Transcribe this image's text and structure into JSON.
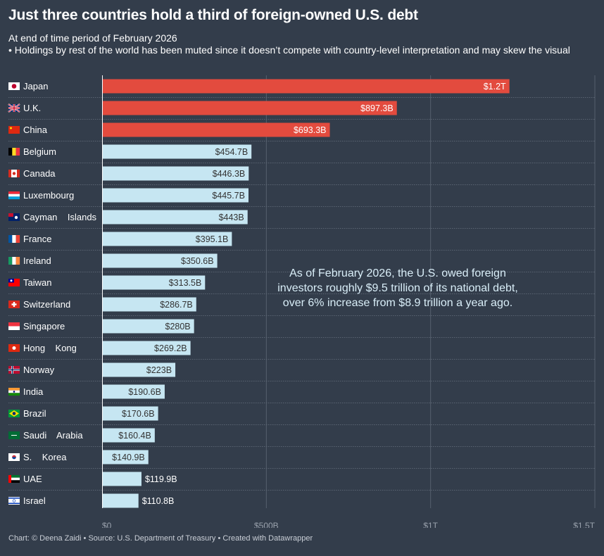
{
  "title": "Just three countries hold a third of foreign-owned U.S. debt",
  "subtitle_line1": "At end of time period of February 2026",
  "subtitle_line2": "• Holdings by rest of the world has been muted since it doesn’t compete with country-level interpretation and may skew the visual",
  "annotation": "As of February 2026, the U.S. owed foreign investors roughly $9.5 trillion of its national debt, over 6% increase from $8.9 trillion a year ago.",
  "footer": "Chart: © Deena Zaidi  • Source: U.S. Department of Treasury • Created with Datawrapper",
  "colors": {
    "background": "#333d4b",
    "highlight": "#e34b3e",
    "default": "#c6e6f2"
  },
  "chart_data": {
    "type": "bar",
    "orientation": "horizontal",
    "xlim": [
      0,
      1500
    ],
    "unit": "billion USD",
    "grid": true,
    "ticks": [
      {
        "value": 0,
        "label": "$0"
      },
      {
        "value": 500,
        "label": "$500B"
      },
      {
        "value": 1000,
        "label": "$1T"
      },
      {
        "value": 1500,
        "label": "$1.5T"
      }
    ],
    "categories": [
      "Japan",
      "U.K.",
      "China",
      "Belgium",
      "Canada",
      "Luxembourg",
      "Cayman    Islands",
      "France",
      "Ireland",
      "Taiwan",
      "Switzerland",
      "Singapore",
      "Hong    Kong",
      "Norway",
      "India",
      "Brazil",
      "Saudi    Arabia",
      "S.    Korea",
      "UAE",
      "Israel"
    ],
    "flags": [
      "jp",
      "gb",
      "cn",
      "be",
      "ca",
      "lu",
      "ky",
      "fr",
      "ie",
      "tw",
      "ch",
      "sg",
      "hk",
      "no",
      "in",
      "br",
      "sa",
      "kr",
      "ae",
      "il"
    ],
    "values": [
      1240,
      897.3,
      693.3,
      454.7,
      446.3,
      445.7,
      443,
      395.1,
      350.6,
      313.5,
      286.7,
      280,
      269.2,
      223,
      190.6,
      170.6,
      160.4,
      140.9,
      119.9,
      110.8
    ],
    "labels": [
      "$1.2T",
      "$897.3B",
      "$693.3B",
      "$454.7B",
      "$446.3B",
      "$445.7B",
      "$443B",
      "$395.1B",
      "$350.6B",
      "$313.5B",
      "$286.7B",
      "$280B",
      "$269.2B",
      "$223B",
      "$190.6B",
      "$170.6B",
      "$160.4B",
      "$140.9B",
      "$119.9B",
      "$110.8B"
    ],
    "highlighted": [
      "Japan",
      "U.K.",
      "China"
    ]
  }
}
